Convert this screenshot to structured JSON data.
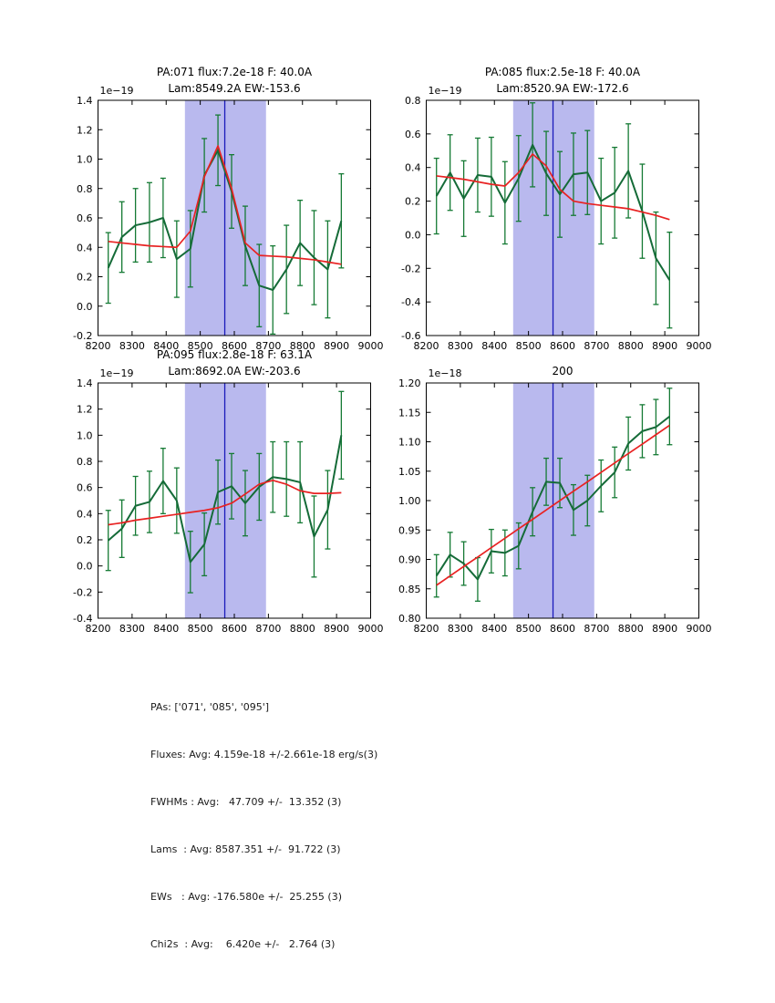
{
  "colors": {
    "data_line": "#156b38",
    "error_bar": "#157a34",
    "fit_line": "#e82222",
    "band": "#b9b9ee",
    "vline": "#1a1abb",
    "axis": "#000000"
  },
  "chart_data": [
    {
      "id": "pa071",
      "type": "line",
      "title1": "PA:071 flux:7.2e-18 F: 40.0A",
      "title2": "Lam:8549.2A EW:-153.6",
      "offset_label": "1e−19",
      "xlim": [
        8200,
        9000
      ],
      "ylim": [
        -0.2,
        1.4
      ],
      "xticks": [
        8200,
        8300,
        8400,
        8500,
        8600,
        8700,
        8800,
        8900,
        9000
      ],
      "yticks": [
        -0.2,
        0.0,
        0.2,
        0.4,
        0.6,
        0.8,
        1.0,
        1.2,
        1.4
      ],
      "ytick_decimals": 1,
      "band": [
        8455,
        8693
      ],
      "vline": 8572,
      "x": [
        8230,
        8270,
        8310,
        8351,
        8391,
        8431,
        8471,
        8512,
        8552,
        8592,
        8632,
        8673,
        8713,
        8753,
        8793,
        8834,
        8874,
        8914
      ],
      "y": [
        0.26,
        0.47,
        0.55,
        0.57,
        0.6,
        0.32,
        0.39,
        0.89,
        1.06,
        0.78,
        0.41,
        0.14,
        0.11,
        0.25,
        0.43,
        0.33,
        0.25,
        0.58
      ],
      "yerr": [
        0.24,
        0.24,
        0.25,
        0.27,
        0.27,
        0.26,
        0.26,
        0.25,
        0.24,
        0.25,
        0.27,
        0.28,
        0.3,
        0.3,
        0.29,
        0.32,
        0.33,
        0.32
      ],
      "fit": [
        0.44,
        0.43,
        0.42,
        0.41,
        0.405,
        0.4,
        0.51,
        0.88,
        1.09,
        0.8,
        0.43,
        0.345,
        0.34,
        0.335,
        0.325,
        0.315,
        0.3,
        0.285
      ]
    },
    {
      "id": "pa085",
      "type": "line",
      "title1": "PA:085 flux:2.5e-18 F: 40.0A",
      "title2": "Lam:8520.9A EW:-172.6",
      "offset_label": "1e−19",
      "xlim": [
        8200,
        9000
      ],
      "ylim": [
        -0.6,
        0.8
      ],
      "xticks": [
        8200,
        8300,
        8400,
        8500,
        8600,
        8700,
        8800,
        8900,
        9000
      ],
      "yticks": [
        -0.6,
        -0.4,
        -0.2,
        0.0,
        0.2,
        0.4,
        0.6,
        0.8
      ],
      "ytick_decimals": 1,
      "band": [
        8455,
        8693
      ],
      "vline": 8572,
      "x": [
        8230,
        8270,
        8310,
        8351,
        8391,
        8431,
        8471,
        8512,
        8552,
        8592,
        8632,
        8673,
        8713,
        8753,
        8793,
        8834,
        8874,
        8914
      ],
      "y": [
        0.23,
        0.37,
        0.215,
        0.355,
        0.345,
        0.19,
        0.335,
        0.535,
        0.365,
        0.24,
        0.36,
        0.37,
        0.2,
        0.25,
        0.38,
        0.14,
        -0.14,
        -0.27
      ],
      "yerr": [
        0.225,
        0.225,
        0.225,
        0.22,
        0.235,
        0.245,
        0.255,
        0.25,
        0.25,
        0.255,
        0.245,
        0.25,
        0.255,
        0.27,
        0.28,
        0.28,
        0.275,
        0.285
      ],
      "fit": [
        0.35,
        0.34,
        0.33,
        0.315,
        0.3,
        0.29,
        0.37,
        0.48,
        0.41,
        0.27,
        0.2,
        0.185,
        0.175,
        0.165,
        0.155,
        0.135,
        0.115,
        0.09
      ]
    },
    {
      "id": "pa095",
      "type": "line",
      "title1": "PA:095 flux:2.8e-18 F: 63.1A",
      "title2": "Lam:8692.0A EW:-203.6",
      "offset_label": "1e−19",
      "xlim": [
        8200,
        9000
      ],
      "ylim": [
        -0.4,
        1.4
      ],
      "xticks": [
        8200,
        8300,
        8400,
        8500,
        8600,
        8700,
        8800,
        8900,
        9000
      ],
      "yticks": [
        -0.4,
        -0.2,
        0.0,
        0.2,
        0.4,
        0.6,
        0.8,
        1.0,
        1.2,
        1.4
      ],
      "ytick_decimals": 1,
      "band": [
        8455,
        8693
      ],
      "vline": 8572,
      "x": [
        8230,
        8270,
        8310,
        8351,
        8391,
        8431,
        8471,
        8512,
        8552,
        8592,
        8632,
        8673,
        8713,
        8753,
        8793,
        8834,
        8874,
        8914
      ],
      "y": [
        0.195,
        0.285,
        0.46,
        0.49,
        0.65,
        0.5,
        0.03,
        0.165,
        0.565,
        0.61,
        0.48,
        0.605,
        0.68,
        0.665,
        0.64,
        0.225,
        0.43,
        1.0
      ],
      "yerr": [
        0.23,
        0.22,
        0.225,
        0.235,
        0.25,
        0.25,
        0.235,
        0.24,
        0.245,
        0.25,
        0.25,
        0.255,
        0.27,
        0.285,
        0.31,
        0.31,
        0.3,
        0.335
      ],
      "fit": [
        0.315,
        0.33,
        0.35,
        0.365,
        0.38,
        0.395,
        0.41,
        0.425,
        0.445,
        0.48,
        0.55,
        0.625,
        0.655,
        0.625,
        0.575,
        0.555,
        0.555,
        0.56
      ]
    },
    {
      "id": "combined-200",
      "type": "line",
      "title1": "",
      "title2": "200",
      "offset_label": "1e−18",
      "xlim": [
        8200,
        9000
      ],
      "ylim": [
        0.8,
        1.2
      ],
      "xticks": [
        8200,
        8300,
        8400,
        8500,
        8600,
        8700,
        8800,
        8900,
        9000
      ],
      "yticks": [
        0.8,
        0.85,
        0.9,
        0.95,
        1.0,
        1.05,
        1.1,
        1.15,
        1.2
      ],
      "ytick_decimals": 2,
      "band": [
        8455,
        8693
      ],
      "vline": 8572,
      "x": [
        8230,
        8270,
        8310,
        8351,
        8391,
        8431,
        8471,
        8512,
        8552,
        8592,
        8632,
        8673,
        8713,
        8753,
        8793,
        8834,
        8874,
        8914
      ],
      "y": [
        0.872,
        0.908,
        0.893,
        0.866,
        0.914,
        0.911,
        0.923,
        0.981,
        1.032,
        1.03,
        0.984,
        1.0,
        1.025,
        1.048,
        1.097,
        1.118,
        1.125,
        1.143
      ],
      "yerr": [
        0.036,
        0.038,
        0.037,
        0.037,
        0.037,
        0.039,
        0.039,
        0.041,
        0.04,
        0.042,
        0.043,
        0.043,
        0.044,
        0.043,
        0.045,
        0.045,
        0.047,
        0.048
      ],
      "fit": [
        0.856,
        0.872,
        0.888,
        0.904,
        0.92,
        0.936,
        0.952,
        0.968,
        0.984,
        1.0,
        1.016,
        1.032,
        1.048,
        1.064,
        1.08,
        1.096,
        1.112,
        1.128
      ]
    }
  ],
  "summary": {
    "lines": [
      "PAs: ['071', '085', '095']",
      "Fluxes: Avg: 4.159e-18 +/-2.661e-18 erg/s(3)",
      "FWHMs : Avg:   47.709 +/-  13.352 (3)",
      "Lams  : Avg: 8587.351 +/-  91.722 (3)",
      "EWs   : Avg: -176.580e +/-  25.255 (3)",
      "Chi2s  : Avg:    6.420e +/-   2.764 (3)"
    ]
  }
}
